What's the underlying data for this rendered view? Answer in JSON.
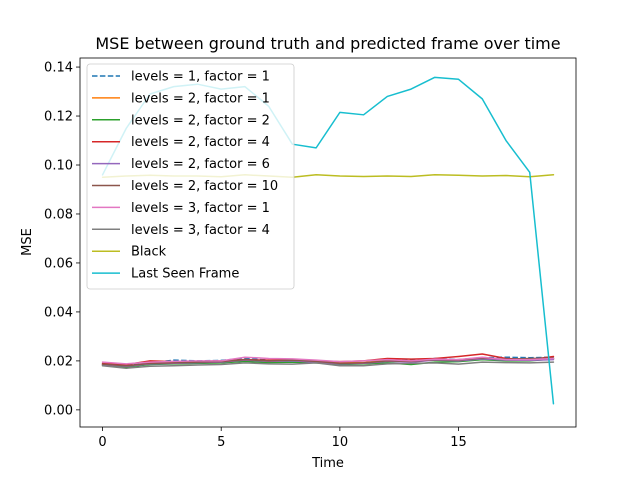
{
  "chart_data": {
    "type": "line",
    "title": "MSE between ground truth and predicted frame over time",
    "xlabel": "Time",
    "ylabel": "MSE",
    "xlim": [
      -0.95,
      19.95
    ],
    "ylim": [
      -0.007,
      0.1437
    ],
    "xticks": [
      0,
      5,
      10,
      15
    ],
    "yticks": [
      0.0,
      0.02,
      0.04,
      0.06,
      0.08,
      0.1,
      0.12,
      0.14
    ],
    "ytick_labels": [
      "0.00",
      "0.02",
      "0.04",
      "0.06",
      "0.08",
      "0.10",
      "0.12",
      "0.14"
    ],
    "grid": false,
    "legend_position": "upper-left",
    "x": [
      0,
      1,
      2,
      3,
      4,
      5,
      6,
      7,
      8,
      9,
      10,
      11,
      12,
      13,
      14,
      15,
      16,
      17,
      18,
      19
    ],
    "series": [
      {
        "name": "levels = 1, factor = 1",
        "color": "#1f77b4",
        "dashed": true,
        "values": [
          0.0188,
          0.018,
          0.0192,
          0.0203,
          0.02,
          0.0202,
          0.021,
          0.0203,
          0.02,
          0.0197,
          0.019,
          0.0192,
          0.02,
          0.0203,
          0.021,
          0.0205,
          0.0213,
          0.0215,
          0.0213,
          0.0215
        ]
      },
      {
        "name": "levels = 2, factor = 1",
        "color": "#ff7f0e",
        "dashed": false,
        "values": [
          0.0185,
          0.0178,
          0.019,
          0.0195,
          0.0195,
          0.0197,
          0.0205,
          0.02,
          0.0202,
          0.0198,
          0.0192,
          0.0193,
          0.0203,
          0.02,
          0.0203,
          0.0205,
          0.021,
          0.0205,
          0.0208,
          0.021
        ]
      },
      {
        "name": "levels = 2, factor = 2",
        "color": "#2ca02c",
        "dashed": false,
        "values": [
          0.0182,
          0.0175,
          0.0185,
          0.0188,
          0.019,
          0.0192,
          0.0198,
          0.0193,
          0.0195,
          0.0192,
          0.0185,
          0.0188,
          0.0192,
          0.0185,
          0.0195,
          0.0197,
          0.0205,
          0.02,
          0.02,
          0.0208
        ]
      },
      {
        "name": "levels = 2, factor = 4",
        "color": "#d62728",
        "dashed": false,
        "values": [
          0.019,
          0.0185,
          0.02,
          0.0197,
          0.0198,
          0.02,
          0.0205,
          0.0203,
          0.0205,
          0.02,
          0.0197,
          0.02,
          0.021,
          0.0207,
          0.021,
          0.0218,
          0.0228,
          0.021,
          0.0205,
          0.0218
        ]
      },
      {
        "name": "levels = 2, factor = 6",
        "color": "#9467bd",
        "dashed": false,
        "values": [
          0.0185,
          0.0178,
          0.0188,
          0.019,
          0.0193,
          0.0195,
          0.0203,
          0.0198,
          0.02,
          0.0195,
          0.0188,
          0.019,
          0.0198,
          0.0195,
          0.0203,
          0.02,
          0.0208,
          0.0203,
          0.0202,
          0.0205
        ]
      },
      {
        "name": "levels = 2, factor = 10",
        "color": "#8c564b",
        "dashed": false,
        "values": [
          0.0187,
          0.018,
          0.019,
          0.0192,
          0.0195,
          0.0197,
          0.0205,
          0.02,
          0.0203,
          0.0198,
          0.019,
          0.0192,
          0.02,
          0.0198,
          0.0205,
          0.0203,
          0.0212,
          0.0207,
          0.021,
          0.0212
        ]
      },
      {
        "name": "levels = 3, factor = 1",
        "color": "#e377c2",
        "dashed": false,
        "values": [
          0.0195,
          0.0188,
          0.0195,
          0.0198,
          0.02,
          0.02,
          0.0215,
          0.021,
          0.0208,
          0.0203,
          0.0197,
          0.02,
          0.0205,
          0.02,
          0.0207,
          0.0205,
          0.0215,
          0.0205,
          0.0205,
          0.021
        ]
      },
      {
        "name": "levels = 3, factor = 4",
        "color": "#7f7f7f",
        "dashed": false,
        "values": [
          0.018,
          0.017,
          0.0178,
          0.018,
          0.0183,
          0.0185,
          0.0192,
          0.0188,
          0.0187,
          0.0192,
          0.018,
          0.018,
          0.0188,
          0.019,
          0.0192,
          0.0187,
          0.0195,
          0.0193,
          0.0192,
          0.0195
        ]
      },
      {
        "name": "Black",
        "color": "#bcbd22",
        "dashed": false,
        "values": [
          0.095,
          0.0955,
          0.0958,
          0.0955,
          0.0955,
          0.0952,
          0.096,
          0.0955,
          0.095,
          0.096,
          0.0955,
          0.0953,
          0.0955,
          0.0953,
          0.096,
          0.0958,
          0.0955,
          0.0957,
          0.0952,
          0.096
        ]
      },
      {
        "name": "Last Seen Frame",
        "color": "#17becf",
        "dashed": false,
        "values": [
          0.096,
          0.115,
          0.129,
          0.132,
          0.133,
          0.131,
          0.132,
          0.124,
          0.1085,
          0.107,
          0.1215,
          0.1205,
          0.128,
          0.131,
          0.1358,
          0.135,
          0.127,
          0.11,
          0.097,
          0.0025
        ]
      }
    ]
  }
}
